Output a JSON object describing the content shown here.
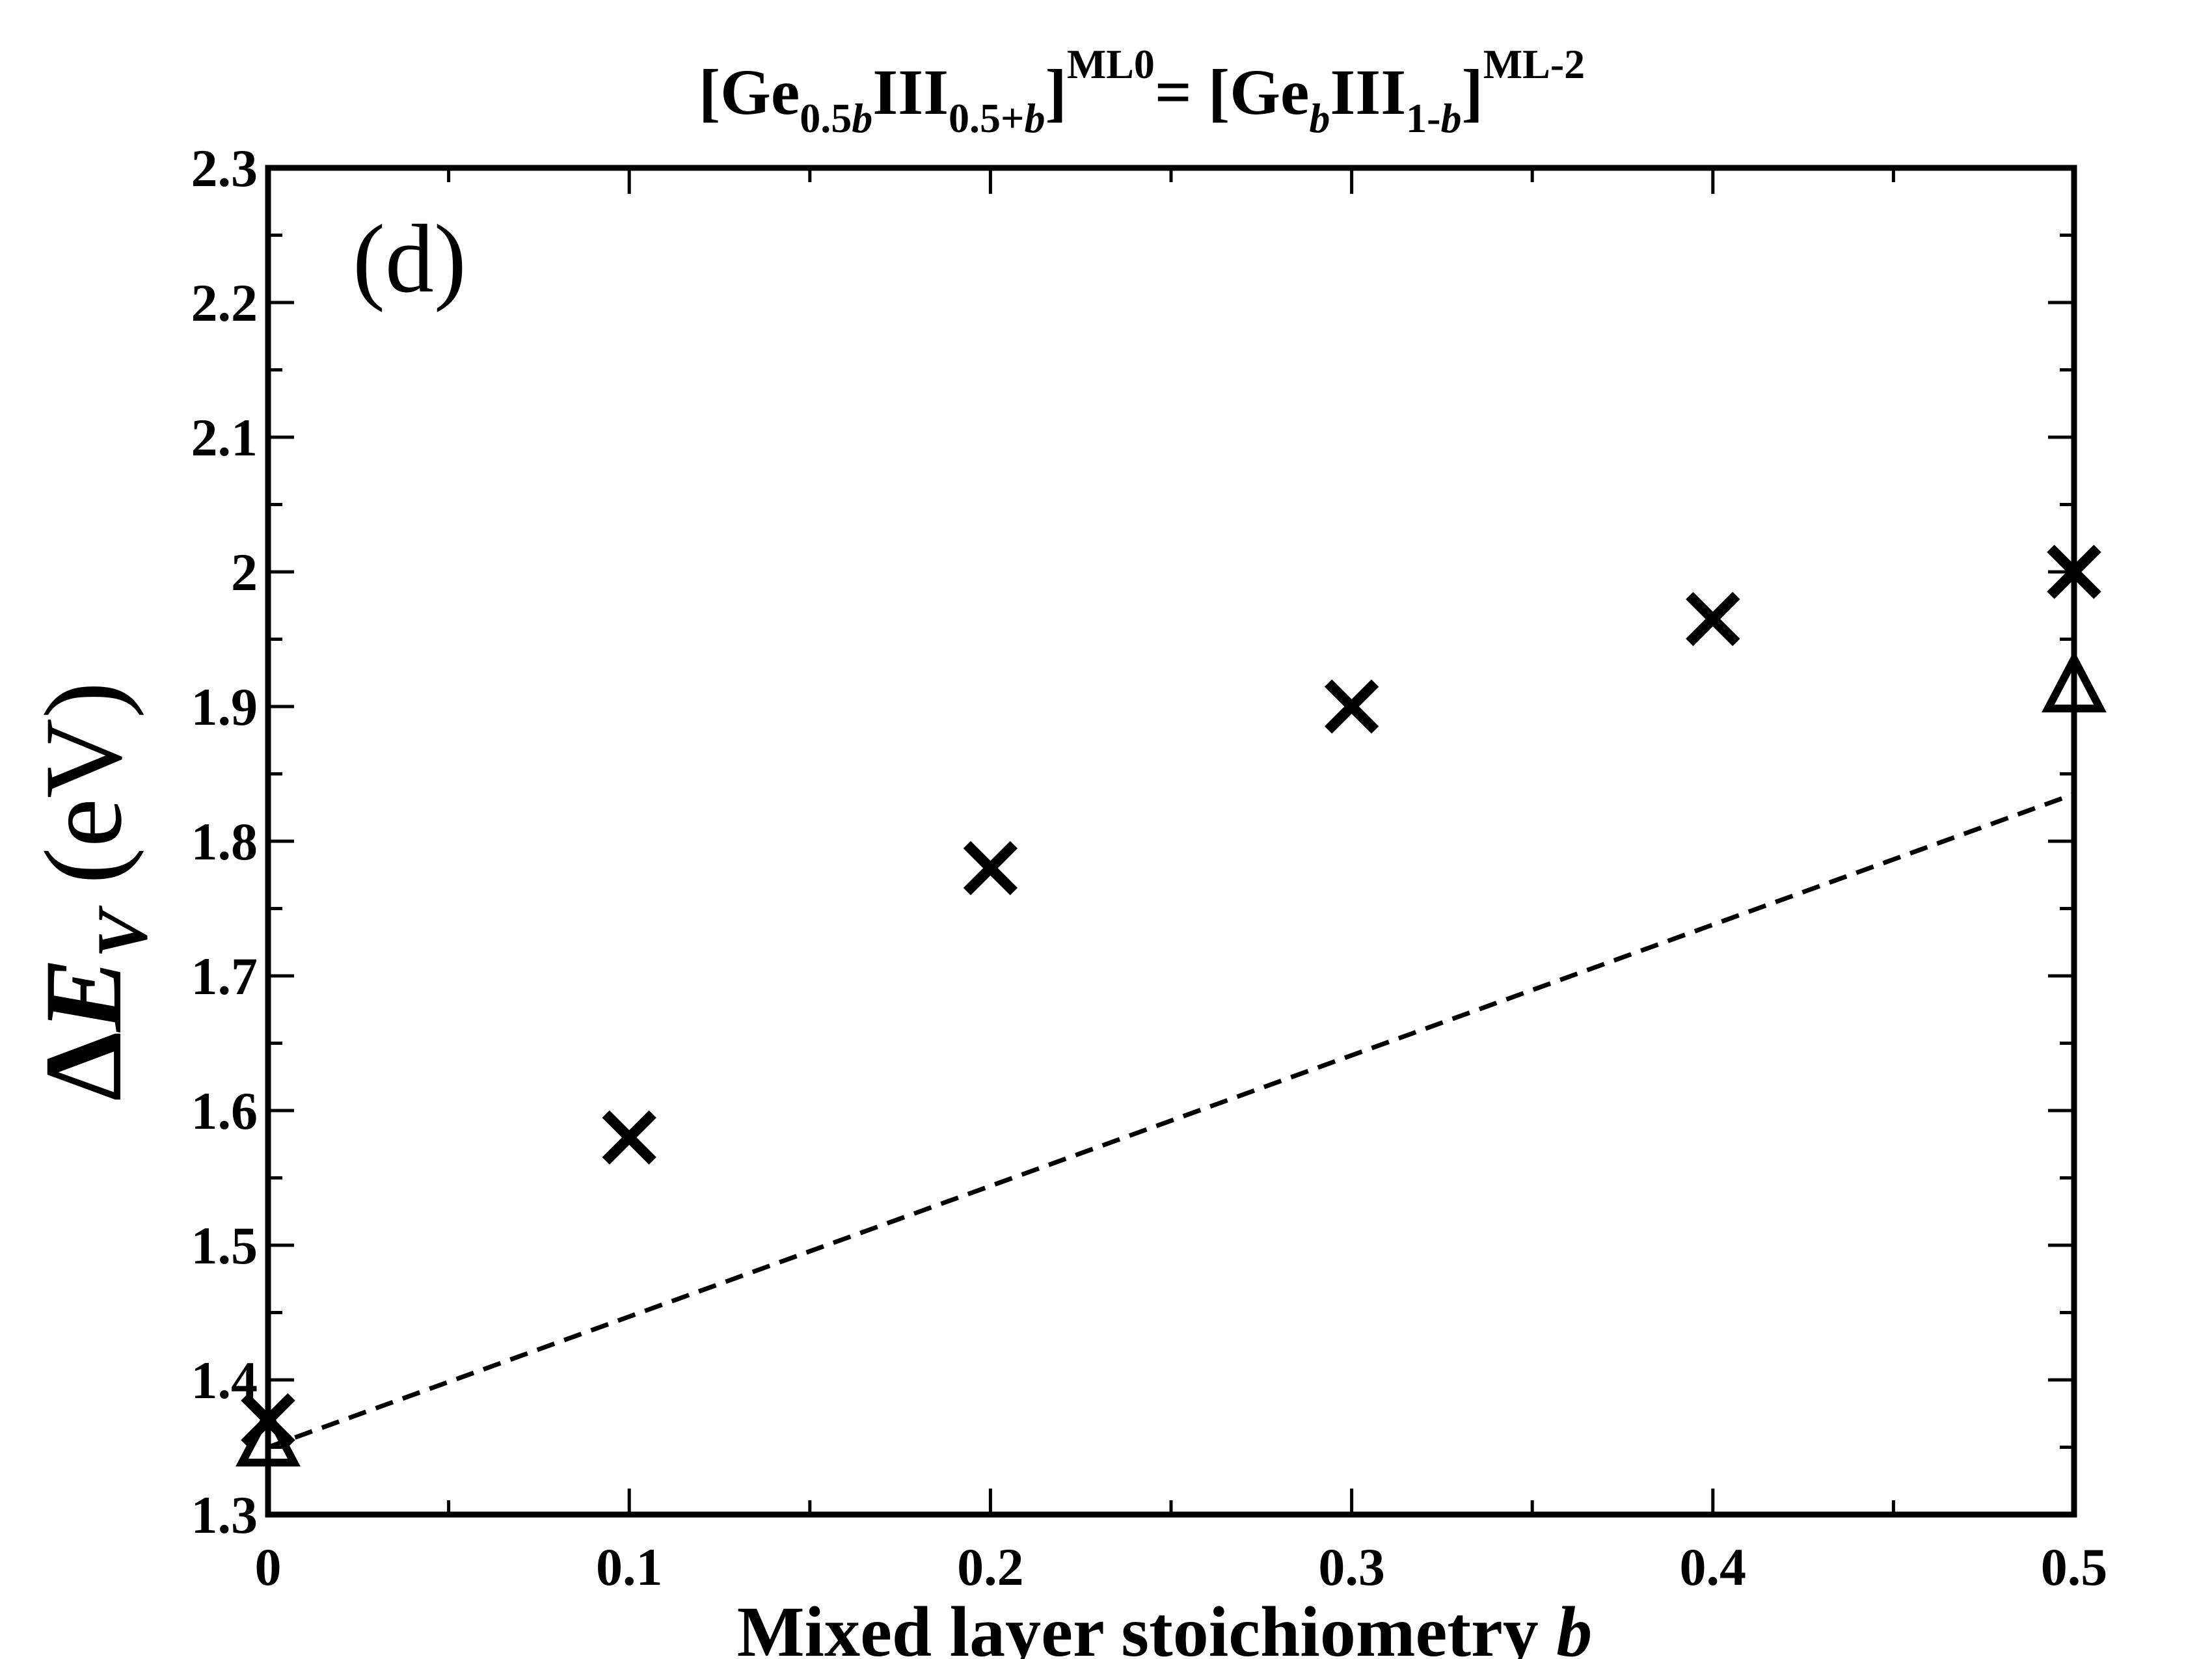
{
  "chart_data": {
    "type": "scatter",
    "title": {
      "part1": "[Ge",
      "sub1": "0.5",
      "sub1_italic": "b",
      "part2": "III",
      "sub2": "0.5+",
      "sub2_italic": "b",
      "part3": "]",
      "sup1": "ML0",
      "part4": "= [Ge",
      "sub3_italic": "b",
      "part5": "III",
      "sub4": "1-",
      "sub4_italic": "b",
      "part6": "]",
      "sup2": "ML-2"
    },
    "panel_label": "(d)",
    "xlabel": "Mixed layer stoichiometry ",
    "xlabel_italic": "b",
    "ylabel": {
      "delta": "Δ",
      "symbol": "E",
      "subscript": "V",
      "unit": "(eV)"
    },
    "xlim": [
      0,
      0.5
    ],
    "ylim": [
      1.3,
      2.3
    ],
    "x_ticks": [
      "0",
      "0.1",
      "0.2",
      "0.3",
      "0.4",
      "0.5"
    ],
    "y_ticks": [
      "1.3",
      "1.4",
      "1.5",
      "1.6",
      "1.7",
      "1.8",
      "1.9",
      "2",
      "2.1",
      "2.2",
      "2.3"
    ],
    "grid": false,
    "series": [
      {
        "marker": "x",
        "x": [
          0,
          0.1,
          0.2,
          0.3,
          0.4,
          0.5
        ],
        "y": [
          1.37,
          1.58,
          1.78,
          1.9,
          1.965,
          2.0
        ]
      },
      {
        "marker": "triangle",
        "x": [
          0,
          0.5
        ],
        "y": [
          1.355,
          1.915
        ]
      },
      {
        "style": "dashed-line",
        "x": [
          0,
          0.5
        ],
        "y": [
          1.35,
          1.835
        ]
      }
    ]
  }
}
